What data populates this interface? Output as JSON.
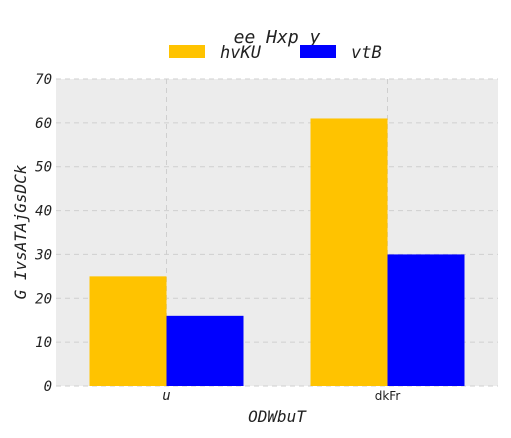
{
  "chart_data": {
    "type": "bar",
    "title": "ee Hxp y",
    "xlabel": "ODWbuT",
    "ylabel": "G IvsATAjGsDCk",
    "categories": [
      "u",
      "dkFr"
    ],
    "series": [
      {
        "name": "hvKU",
        "values": [
          25,
          61
        ],
        "color": "#ffc300"
      },
      {
        "name": "vtB",
        "values": [
          16,
          30
        ],
        "color": "#0000ff"
      }
    ],
    "ylim": [
      0,
      70
    ],
    "yticks": [
      "0",
      "10",
      "20",
      "30",
      "40",
      "50",
      "60",
      "70"
    ],
    "grid": true,
    "legend": "top-center",
    "background": "#ececec"
  }
}
